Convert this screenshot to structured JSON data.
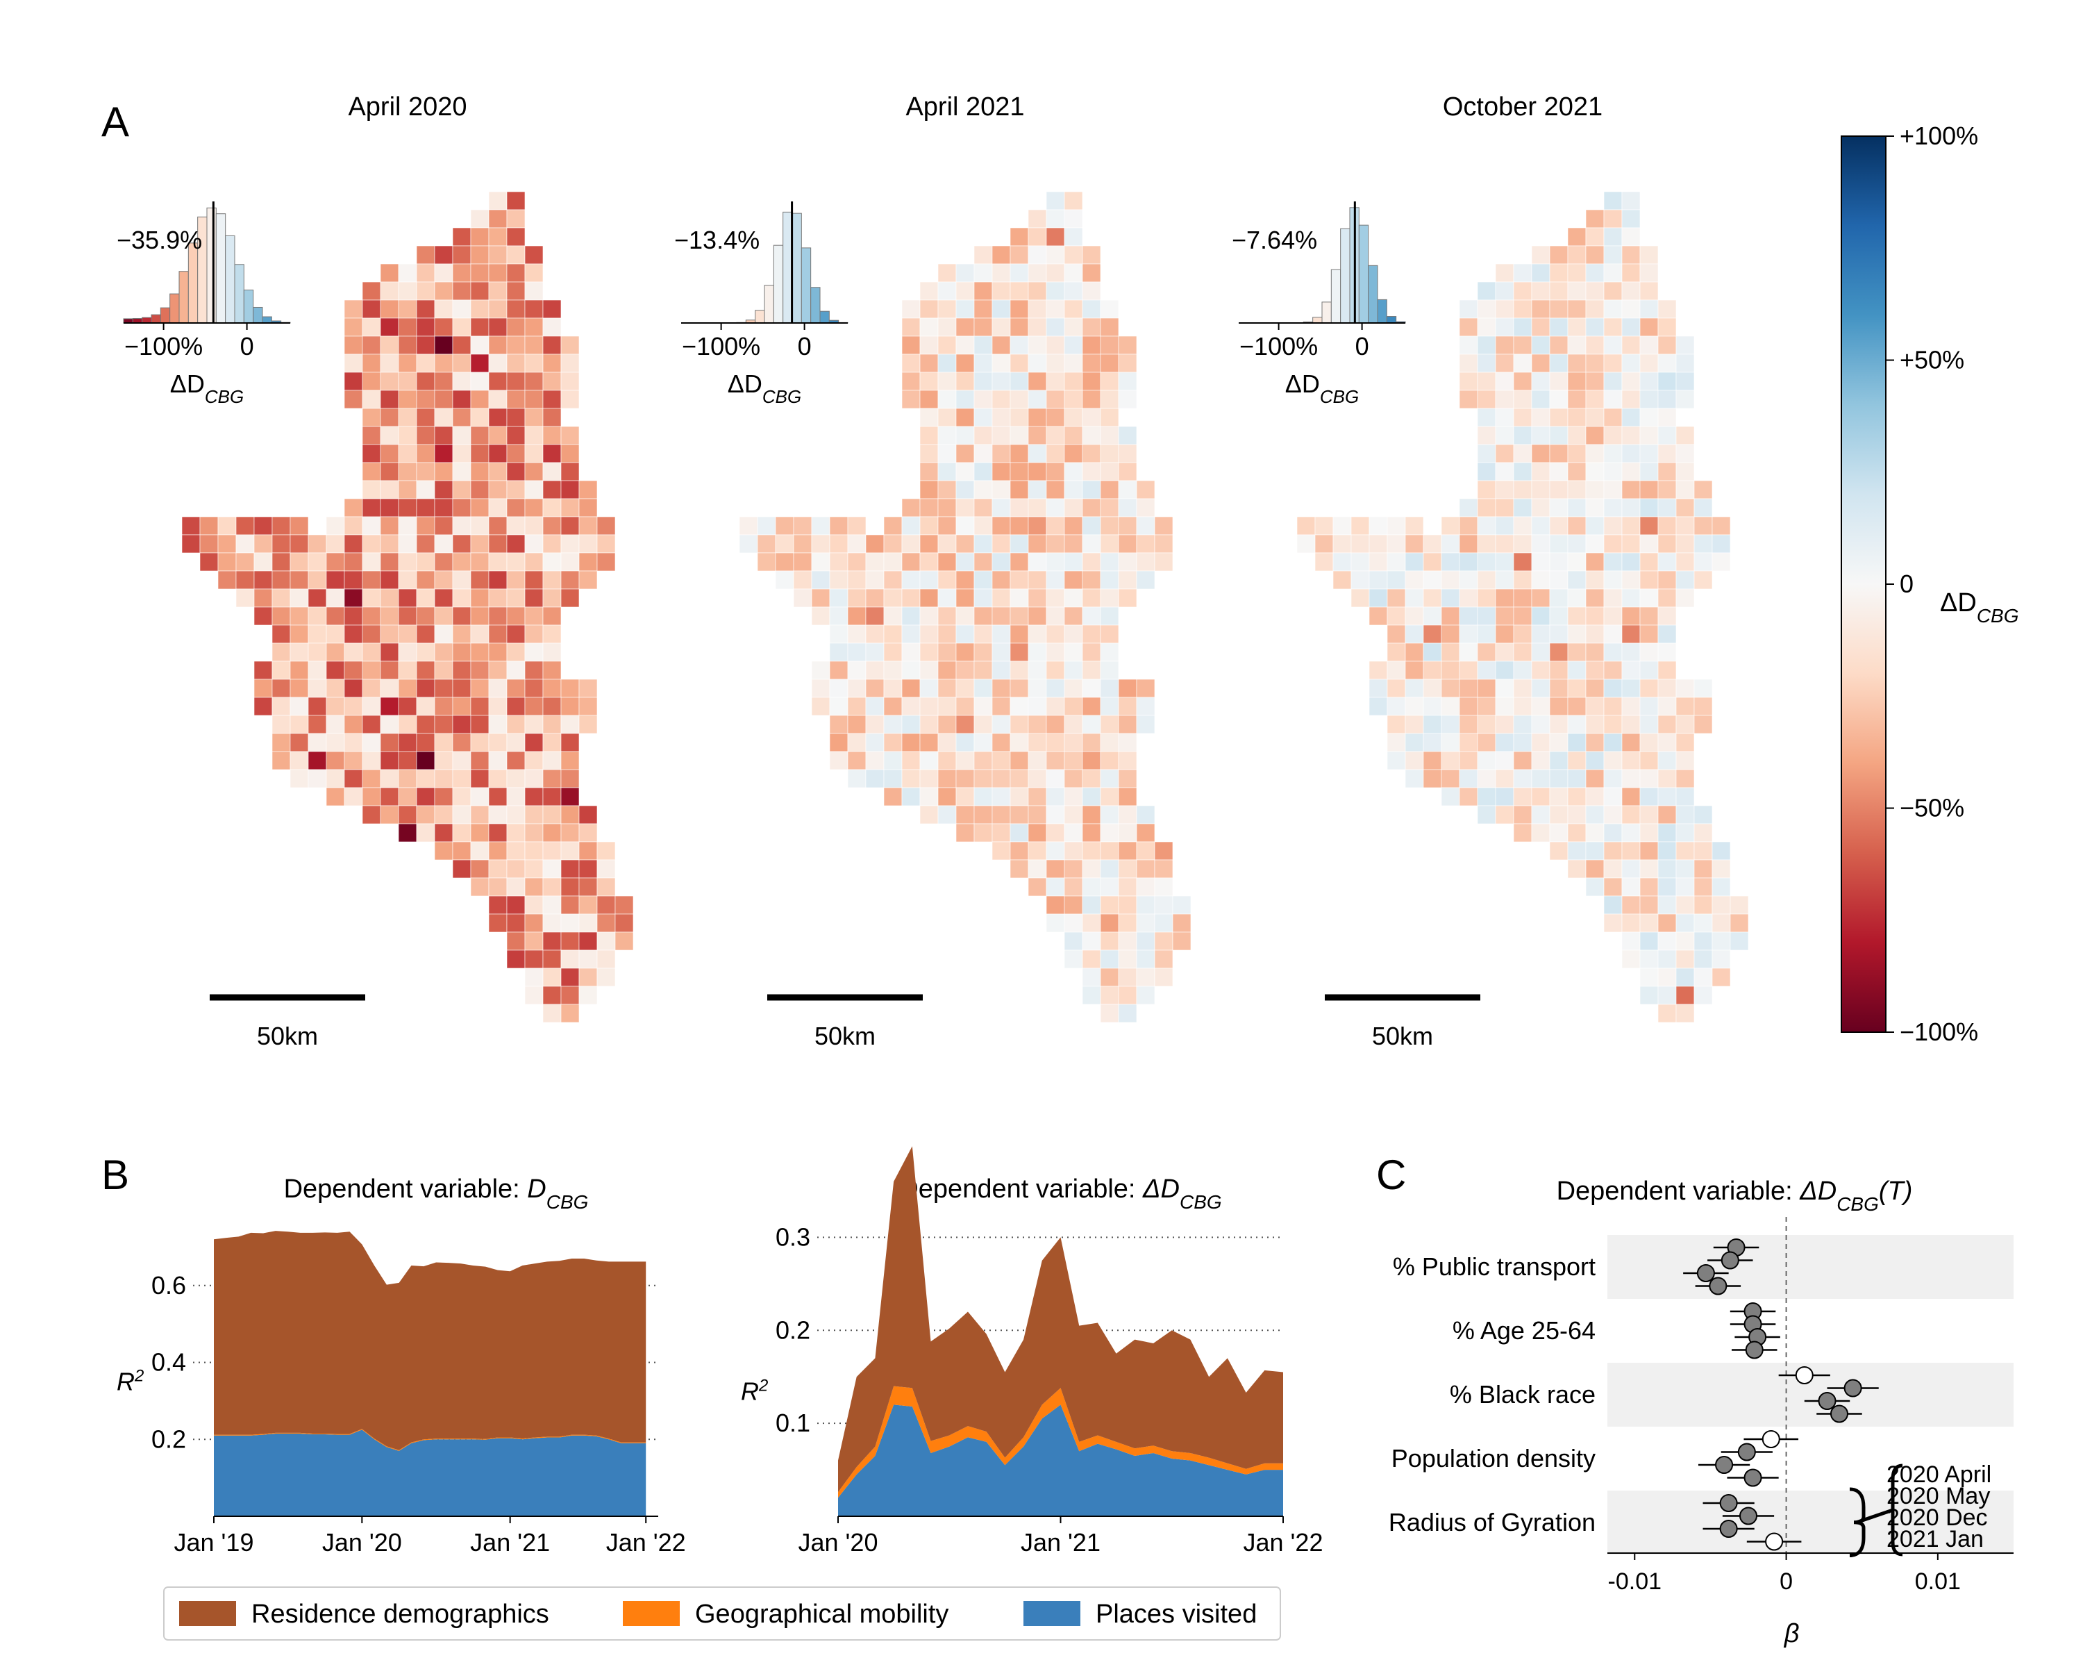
{
  "panels": {
    "A": "A",
    "B": "B",
    "C": "C"
  },
  "maps": [
    {
      "title": "April 2020",
      "hist_label": "−35.9%",
      "scale_label": "50km",
      "mean_change_pct": -35.9
    },
    {
      "title": "April 2021",
      "hist_label": "−13.4%",
      "scale_label": "50km",
      "mean_change_pct": -13.4
    },
    {
      "title": "October 2021",
      "hist_label": "−7.64%",
      "scale_label": "50km",
      "mean_change_pct": -7.64
    }
  ],
  "hist_axis": {
    "ticks": [
      "−100%",
      "0"
    ],
    "xlabel_main": "ΔD",
    "xlabel_sub": "CBG"
  },
  "colorbar": {
    "ticks": [
      "+100%",
      "+50%",
      "0",
      "−50%",
      "−100%"
    ],
    "label_main": "ΔD",
    "label_sub": "CBG",
    "colors": [
      "#053061",
      "#2166ac",
      "#4393c3",
      "#92c5de",
      "#d1e5f0",
      "#f7f7f7",
      "#fddbc7",
      "#f4a582",
      "#d6604d",
      "#b2182b",
      "#67001f"
    ]
  },
  "legend": [
    {
      "label": "Residence demographics",
      "color": "#a6552b"
    },
    {
      "label": "Geographical mobility",
      "color": "#ff7f0e"
    },
    {
      "label": "Places visited",
      "color": "#3a7fbb"
    }
  ],
  "chart_data": [
    {
      "type": "area",
      "title_main": "Dependent variable: ",
      "title_var": "D",
      "title_sub": "CBG",
      "ylabel": "R",
      "ylabel_sup": "2",
      "xlim": [
        0,
        36
      ],
      "ylim": [
        0,
        0.8
      ],
      "yticks": [
        0.2,
        0.4,
        0.6
      ],
      "ytick_labels": [
        "0.2",
        "0.4",
        "0.6"
      ],
      "xticks": [
        0,
        12,
        24,
        35
      ],
      "xtick_labels": [
        "Jan '19",
        "Jan '20",
        "Jan '21",
        "Jan '22"
      ],
      "grid": "horizontal dotted",
      "x": [
        0,
        1,
        2,
        3,
        4,
        5,
        6,
        7,
        8,
        9,
        10,
        11,
        12,
        13,
        14,
        15,
        16,
        17,
        18,
        19,
        20,
        21,
        22,
        23,
        24,
        25,
        26,
        27,
        28,
        29,
        30,
        31,
        32,
        33,
        34,
        35
      ],
      "series": [
        {
          "name": "Places visited",
          "values": [
            0.21,
            0.21,
            0.21,
            0.21,
            0.212,
            0.215,
            0.215,
            0.215,
            0.213,
            0.213,
            0.212,
            0.212,
            0.225,
            0.2,
            0.18,
            0.17,
            0.19,
            0.198,
            0.2,
            0.2,
            0.2,
            0.2,
            0.199,
            0.203,
            0.203,
            0.2,
            0.203,
            0.205,
            0.205,
            0.21,
            0.21,
            0.208,
            0.2,
            0.19,
            0.19,
            0.19
          ]
        },
        {
          "name": "Geographical mobility",
          "values": [
            0.002,
            0.002,
            0.002,
            0.002,
            0.002,
            0.002,
            0.002,
            0.002,
            0.002,
            0.002,
            0.002,
            0.002,
            0.002,
            0.002,
            0.002,
            0.002,
            0.002,
            0.002,
            0.002,
            0.002,
            0.002,
            0.002,
            0.002,
            0.002,
            0.002,
            0.002,
            0.002,
            0.002,
            0.002,
            0.002,
            0.002,
            0.002,
            0.002,
            0.002,
            0.002,
            0.002
          ]
        },
        {
          "name": "Residence demographics",
          "values": [
            0.508,
            0.512,
            0.515,
            0.525,
            0.522,
            0.525,
            0.523,
            0.52,
            0.522,
            0.523,
            0.523,
            0.526,
            0.48,
            0.45,
            0.42,
            0.435,
            0.46,
            0.45,
            0.458,
            0.457,
            0.455,
            0.45,
            0.448,
            0.435,
            0.432,
            0.45,
            0.452,
            0.455,
            0.457,
            0.458,
            0.458,
            0.455,
            0.46,
            0.47,
            0.47,
            0.47
          ]
        }
      ]
    },
    {
      "type": "area",
      "title_main": "Dependent variable: ",
      "title_var": "ΔD",
      "title_sub": "CBG",
      "ylabel": "R",
      "ylabel_sup": "2",
      "xlim": [
        0,
        24
      ],
      "ylim": [
        0,
        0.31
      ],
      "yticks": [
        0.1,
        0.2,
        0.3
      ],
      "ytick_labels": [
        "0.1",
        "0.2",
        "0.3"
      ],
      "xticks": [
        0,
        12,
        24
      ],
      "xtick_labels": [
        "Jan '20",
        "Jan '21",
        "Jan '22"
      ],
      "grid": "horizontal dotted",
      "x": [
        0,
        1,
        2,
        3,
        4,
        5,
        6,
        7,
        8,
        9,
        10,
        11,
        12,
        13,
        14,
        15,
        16,
        17,
        18,
        19,
        20,
        21,
        22,
        23,
        24
      ],
      "series": [
        {
          "name": "Places visited",
          "values": [
            0.02,
            0.045,
            0.065,
            0.12,
            0.118,
            0.068,
            0.075,
            0.085,
            0.08,
            0.055,
            0.075,
            0.105,
            0.12,
            0.07,
            0.078,
            0.072,
            0.065,
            0.068,
            0.062,
            0.06,
            0.055,
            0.05,
            0.045,
            0.05,
            0.05
          ]
        },
        {
          "name": "Geographical mobility",
          "values": [
            0.006,
            0.008,
            0.01,
            0.02,
            0.02,
            0.013,
            0.012,
            0.012,
            0.011,
            0.008,
            0.01,
            0.015,
            0.018,
            0.01,
            0.009,
            0.008,
            0.008,
            0.008,
            0.008,
            0.008,
            0.008,
            0.007,
            0.006,
            0.007,
            0.007
          ]
        },
        {
          "name": "Residence demographics",
          "values": [
            0.034,
            0.097,
            0.095,
            0.22,
            0.26,
            0.107,
            0.115,
            0.123,
            0.105,
            0.092,
            0.105,
            0.155,
            0.162,
            0.125,
            0.121,
            0.095,
            0.117,
            0.11,
            0.13,
            0.122,
            0.087,
            0.113,
            0.082,
            0.1,
            0.098
          ]
        }
      ]
    },
    {
      "type": "scatter",
      "title_main": "Dependent variable: ",
      "title_var": "ΔD",
      "title_sub": "CBG",
      "title_tail": "(T)",
      "xlabel": "β",
      "xlim": [
        -0.0118,
        0.015
      ],
      "xticks": [
        -0.01,
        0,
        0.01
      ],
      "xtick_labels": [
        "-0.01",
        "0",
        "0.01"
      ],
      "periods": [
        "2020 April",
        "2020 May",
        "2020 Dec",
        "2021 Jan"
      ],
      "variables": [
        {
          "name": "% Public transport",
          "shaded": true,
          "points": [
            {
              "beta": -0.0033,
              "lo": -0.0048,
              "hi": -0.0018,
              "significant": true
            },
            {
              "beta": -0.0037,
              "lo": -0.0052,
              "hi": -0.0022,
              "significant": true
            },
            {
              "beta": -0.0053,
              "lo": -0.0068,
              "hi": -0.0038,
              "significant": true
            },
            {
              "beta": -0.0045,
              "lo": -0.006,
              "hi": -0.003,
              "significant": true
            }
          ]
        },
        {
          "name": "% Age 25-64",
          "shaded": false,
          "points": [
            {
              "beta": -0.0022,
              "lo": -0.0037,
              "hi": -0.0007,
              "significant": true
            },
            {
              "beta": -0.0022,
              "lo": -0.0037,
              "hi": -0.0007,
              "significant": true
            },
            {
              "beta": -0.0019,
              "lo": -0.0034,
              "hi": -0.0004,
              "significant": true
            },
            {
              "beta": -0.0021,
              "lo": -0.0036,
              "hi": -0.0006,
              "significant": true
            }
          ]
        },
        {
          "name": "% Black race",
          "shaded": true,
          "points": [
            {
              "beta": 0.0012,
              "lo": -0.0005,
              "hi": 0.0029,
              "significant": false
            },
            {
              "beta": 0.0044,
              "lo": 0.0027,
              "hi": 0.0061,
              "significant": true
            },
            {
              "beta": 0.0027,
              "lo": 0.0012,
              "hi": 0.0042,
              "significant": true
            },
            {
              "beta": 0.0035,
              "lo": 0.002,
              "hi": 0.005,
              "significant": true
            }
          ]
        },
        {
          "name": "Population density",
          "shaded": false,
          "points": [
            {
              "beta": -0.001,
              "lo": -0.0028,
              "hi": 0.0008,
              "significant": false
            },
            {
              "beta": -0.0026,
              "lo": -0.0043,
              "hi": -0.0009,
              "significant": true
            },
            {
              "beta": -0.0041,
              "lo": -0.0058,
              "hi": -0.0024,
              "significant": true
            },
            {
              "beta": -0.0022,
              "lo": -0.0039,
              "hi": -0.0005,
              "significant": true
            }
          ]
        },
        {
          "name": "Radius of Gyration",
          "shaded": true,
          "points": [
            {
              "beta": -0.0038,
              "lo": -0.0055,
              "hi": -0.0021,
              "significant": true
            },
            {
              "beta": -0.0025,
              "lo": -0.0042,
              "hi": -0.0008,
              "significant": true
            },
            {
              "beta": -0.0038,
              "lo": -0.0055,
              "hi": -0.0021,
              "significant": true
            },
            {
              "beta": -0.0008,
              "lo": -0.0026,
              "hi": 0.001,
              "significant": false
            }
          ]
        }
      ]
    }
  ]
}
